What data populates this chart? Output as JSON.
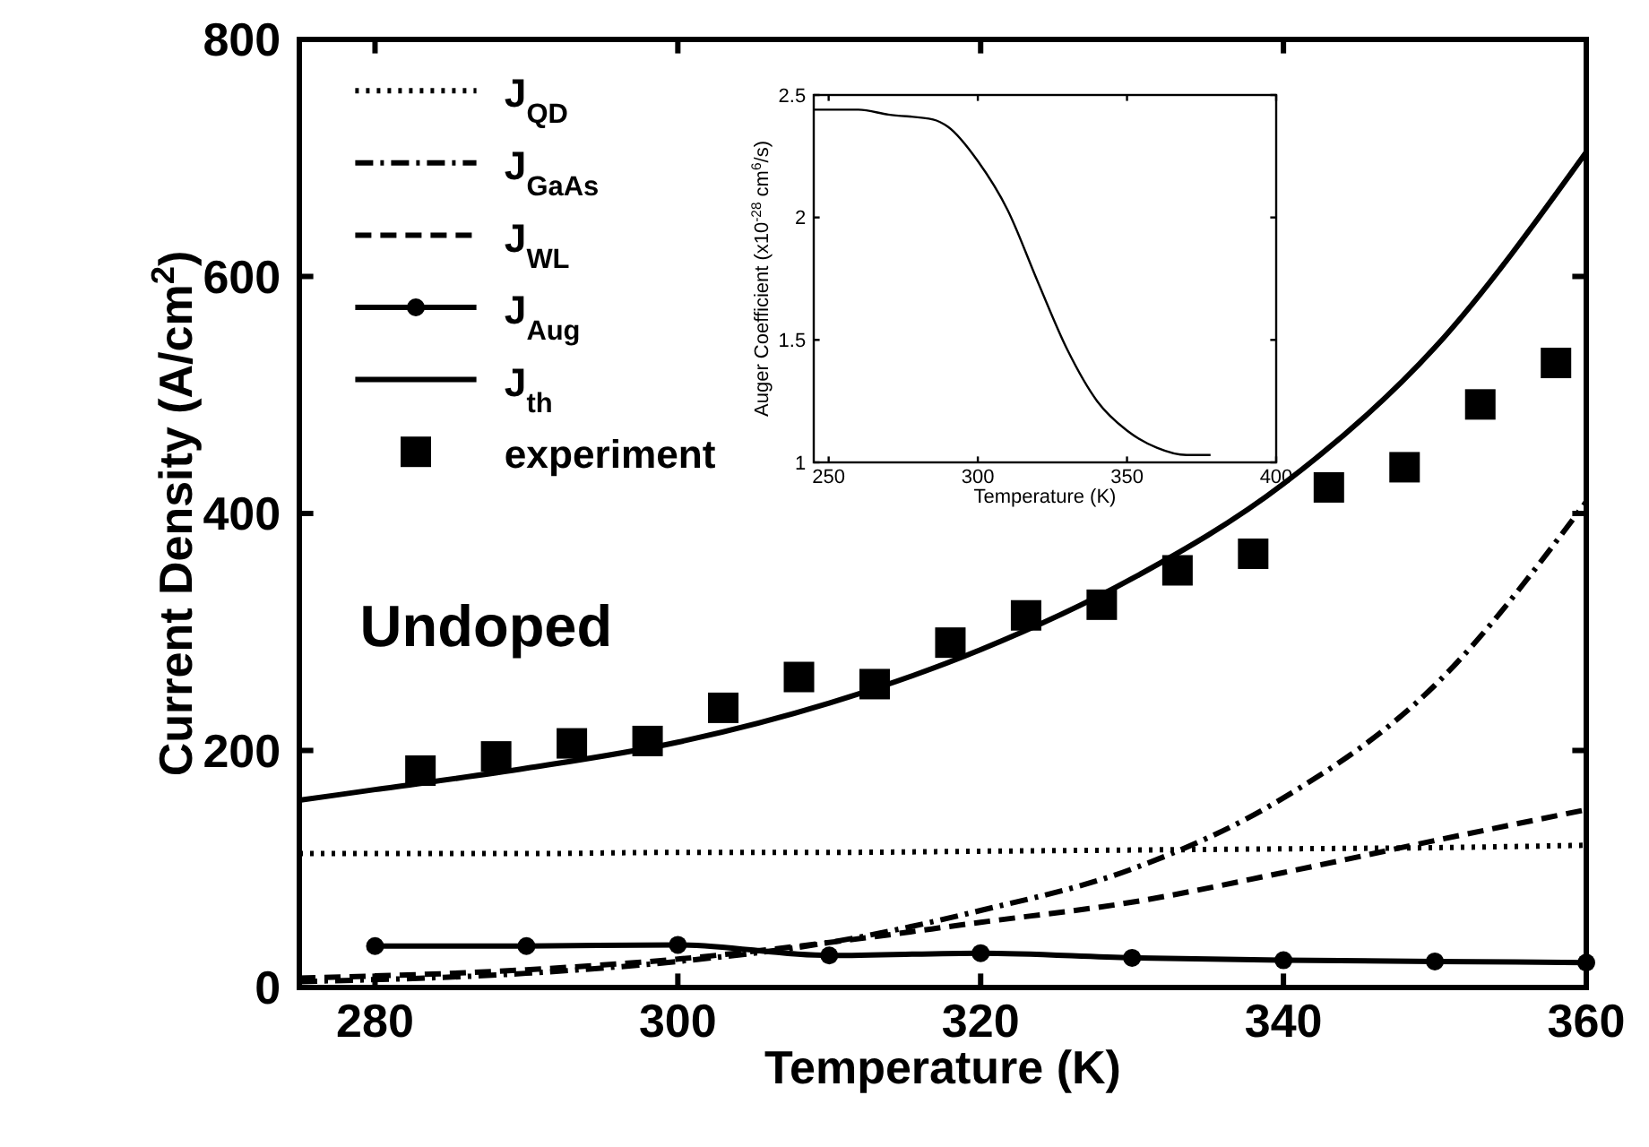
{
  "chart_data": [
    {
      "type": "line",
      "xlabel": "Temperature (K)",
      "ylabel": "Current Density (A/cm$^{2}$)",
      "xlim": [
        275,
        360
      ],
      "ylim": [
        0,
        800
      ],
      "xticks": [
        280,
        300,
        320,
        340,
        360
      ],
      "yticks": [
        0,
        200,
        400,
        600,
        800
      ],
      "legend": "top left",
      "grid": false,
      "annotations": [
        "Undoped"
      ],
      "series": [
        {
          "name": "J$_{QD}$",
          "color": "#000000",
          "line_style": "dotted",
          "marker": "none",
          "x": [
            275,
            290,
            300,
            310,
            320,
            330,
            340,
            350,
            360
          ],
          "values": [
            113,
            113,
            114,
            114,
            115,
            116,
            117,
            118,
            120
          ]
        },
        {
          "name": "J$_{GaAs}$",
          "color": "#000000",
          "line_style": "dashdot",
          "marker": "none",
          "x": [
            275,
            290,
            300,
            310,
            320,
            330,
            340,
            350,
            360
          ],
          "values": [
            5,
            12,
            22,
            38,
            65,
            100,
            160,
            255,
            410
          ]
        },
        {
          "name": "J$_{WL}$",
          "color": "#000000",
          "line_style": "dashed",
          "marker": "none",
          "x": [
            275,
            290,
            300,
            310,
            320,
            330,
            340,
            350,
            360
          ],
          "values": [
            8,
            15,
            24,
            38,
            55,
            72,
            97,
            124,
            150
          ]
        },
        {
          "name": "J$_{Aug}$",
          "color": "#000000",
          "line_style": "solid",
          "marker": "circle",
          "x": [
            280,
            290,
            300,
            310,
            320,
            330,
            340,
            350,
            360
          ],
          "values": [
            35,
            35,
            36,
            27,
            29,
            25,
            23,
            22,
            21
          ]
        },
        {
          "name": "J$_{th}$",
          "color": "#000000",
          "line_style": "solid",
          "marker": "none",
          "x": [
            275,
            280,
            290,
            300,
            310,
            320,
            330,
            340,
            350,
            360
          ],
          "values": [
            158,
            167,
            185,
            207,
            240,
            285,
            345,
            425,
            540,
            705
          ]
        },
        {
          "name": "experiment",
          "type": "scatter",
          "color": "#000000",
          "marker": "square",
          "x": [
            283,
            288,
            293,
            298,
            303,
            308,
            313,
            318,
            323,
            328,
            333,
            338,
            343,
            348,
            353,
            358
          ],
          "values": [
            183,
            195,
            206,
            208,
            236,
            262,
            256,
            291,
            314,
            323,
            352,
            366,
            422,
            439,
            492,
            527
          ]
        }
      ]
    },
    {
      "type": "line",
      "xlabel": "Temperature (K)",
      "ylabel": "Auger Coefficient (x10$^{-28}$ cm$^{6}$/s)",
      "xlim": [
        245,
        400
      ],
      "ylim": [
        1,
        2.5
      ],
      "xticks": [
        250,
        300,
        350,
        400
      ],
      "yticks": [
        1,
        1.5,
        2,
        2.5
      ],
      "legend": false,
      "grid": false,
      "series": [
        {
          "color": "#000000",
          "line_style": "solid",
          "marker": "none",
          "x": [
            245,
            260,
            270,
            285,
            290,
            300,
            310,
            320,
            330,
            340,
            350,
            360,
            370,
            378
          ],
          "values": [
            2.44,
            2.44,
            2.42,
            2.4,
            2.37,
            2.23,
            2.03,
            1.74,
            1.46,
            1.25,
            1.13,
            1.06,
            1.03,
            1.03
          ]
        }
      ]
    }
  ]
}
